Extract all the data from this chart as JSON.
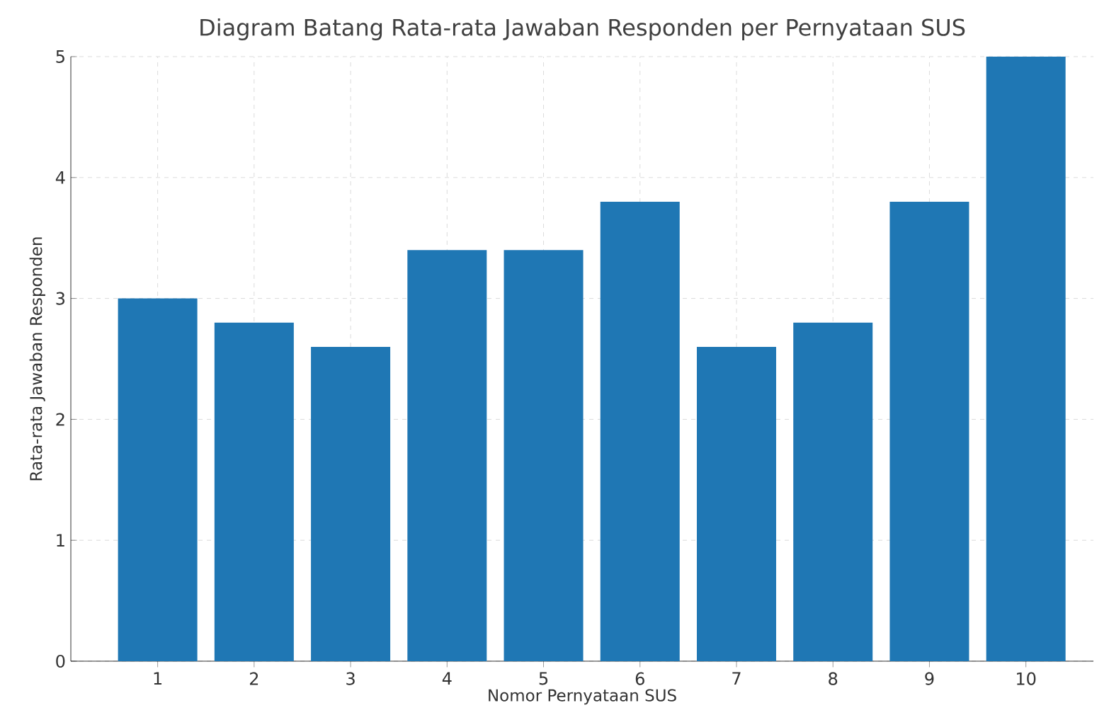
{
  "chart_data": {
    "type": "bar",
    "title": "Diagram Batang Rata-rata Jawaban Responden per Pernyataan SUS",
    "xlabel": "Nomor Pernyataan SUS",
    "ylabel": "Rata-rata Jawaban Responden",
    "categories": [
      "1",
      "2",
      "3",
      "4",
      "5",
      "6",
      "7",
      "8",
      "9",
      "10"
    ],
    "values": [
      3,
      2.8,
      2.6,
      3.4,
      3.4,
      3.8,
      2.6,
      2.8,
      3.8,
      5
    ],
    "color": "#1f77b4",
    "ylim": [
      0,
      5
    ],
    "yticks": [
      0,
      1,
      2,
      3,
      4,
      5
    ],
    "grid": true
  }
}
